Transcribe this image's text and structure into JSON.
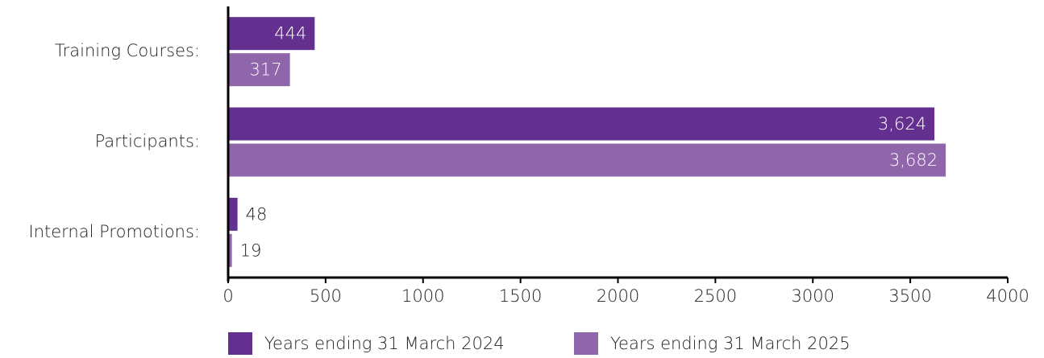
{
  "chart_data": {
    "type": "hbar",
    "categories": [
      "Training Courses:",
      "Participants:",
      "Internal Promotions:"
    ],
    "series": [
      {
        "name": "Years ending 31 March 2024",
        "color": "#63308f",
        "values": [
          444,
          3624,
          48
        ],
        "value_labels": [
          "444",
          "3,624",
          "48"
        ]
      },
      {
        "name": "Years ending 31 March 2025",
        "color": "#8f66aa",
        "values": [
          317,
          3682,
          19
        ],
        "value_labels": [
          "317",
          "3,682",
          "19"
        ]
      }
    ],
    "xlim": [
      0,
      4000
    ],
    "xticks": [
      0,
      500,
      1000,
      1500,
      2000,
      2500,
      3000,
      3500,
      4000
    ],
    "legend": "bottom"
  }
}
